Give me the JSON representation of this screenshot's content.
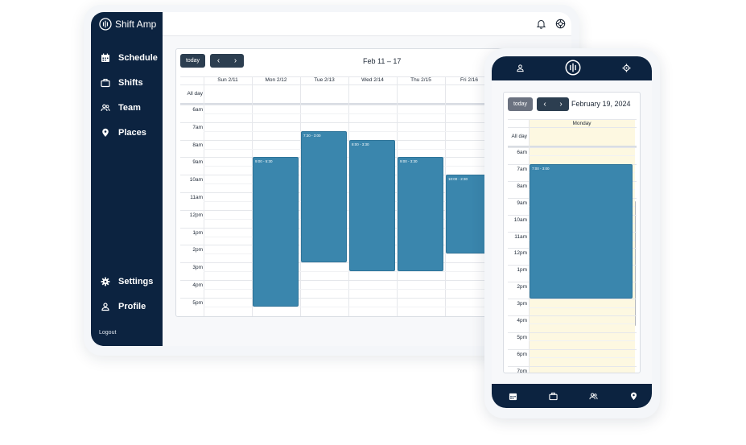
{
  "app": {
    "name": "Shift Amp",
    "sidebar": {
      "items": [
        {
          "label": "Schedule",
          "icon": "calendar-icon"
        },
        {
          "label": "Shifts",
          "icon": "briefcase-icon"
        },
        {
          "label": "Team",
          "icon": "team-icon"
        },
        {
          "label": "Places",
          "icon": "map-pin-icon"
        }
      ],
      "bottom_items": [
        {
          "label": "Settings",
          "icon": "gear-icon"
        },
        {
          "label": "Profile",
          "icon": "user-icon"
        }
      ],
      "logout": "Logout"
    },
    "topbar_icons": [
      "bell-icon",
      "support-icon"
    ]
  },
  "week_view": {
    "today_label": "today",
    "prev": "‹",
    "next": "›",
    "title": "Feb 11 – 17",
    "all_day": "All day",
    "days": [
      "Sun 2/11",
      "Mon 2/12",
      "Tue 2/13",
      "Wed 2/14",
      "Thu 2/15",
      "Fri 2/16"
    ],
    "times": [
      "6am",
      "7am",
      "8am",
      "9am",
      "10am",
      "11am",
      "12pm",
      "1pm",
      "2pm",
      "3pm",
      "4pm",
      "5pm"
    ],
    "events": [
      {
        "day": 1,
        "label": "9:00 - 5:30",
        "start": 9,
        "end": 17.5
      },
      {
        "day": 2,
        "label": "7:30 - 3:00",
        "start": 7.5,
        "end": 15
      },
      {
        "day": 3,
        "label": "8:00 - 3:30",
        "start": 8,
        "end": 15.5
      },
      {
        "day": 4,
        "label": "9:00 - 3:30",
        "start": 9,
        "end": 15.5
      },
      {
        "day": 5,
        "label": "10:00 - 2:30",
        "start": 10,
        "end": 14.5
      }
    ]
  },
  "day_view": {
    "today_label": "today",
    "prev": "‹",
    "next": "›",
    "title": "February 19, 2024",
    "day": "Monday",
    "all_day": "All day",
    "times": [
      "6am",
      "7am",
      "8am",
      "9am",
      "10am",
      "11am",
      "12pm",
      "1pm",
      "2pm",
      "3pm",
      "4pm",
      "5pm",
      "6pm",
      "7pm"
    ],
    "events": [
      {
        "label": "7:00 - 3:00",
        "start": 7,
        "end": 15
      }
    ]
  },
  "mobile": {
    "top_icons": [
      "user-icon",
      "logo-icon",
      "gear-icon"
    ],
    "bottom_icons": [
      "calendar-icon",
      "briefcase-icon",
      "team-icon",
      "map-pin-icon"
    ]
  },
  "colors": {
    "navy": "#0c2340",
    "event": "#3a86ad",
    "today_highlight": "#fdf8e1",
    "button": "#2c3e50",
    "mobile_today_button": "#6b7280"
  }
}
